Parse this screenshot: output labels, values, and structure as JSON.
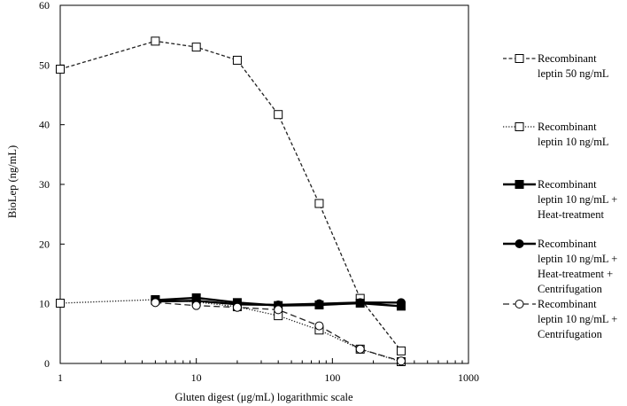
{
  "chart_data": {
    "type": "line",
    "title": "",
    "xlabel": "Gluten digest (μg/mL) logarithmic scale",
    "ylabel": "BioLep (ng/mL)",
    "xscale": "log",
    "xlim": [
      1,
      1000
    ],
    "ylim": [
      0,
      60
    ],
    "x_ticks": [
      "1",
      "10",
      "100",
      "1000"
    ],
    "y_ticks": [
      "0",
      "10",
      "20",
      "30",
      "40",
      "50",
      "60"
    ],
    "grid": false,
    "legend_position": "right",
    "series": [
      {
        "name_lines": [
          "Recombinant",
          "leptin 50 ng/mL"
        ],
        "line_style": "dashed",
        "line_width": 1.3,
        "marker": "square-open",
        "color": "#222222",
        "x": [
          1,
          5,
          10,
          20,
          40,
          80,
          160,
          320
        ],
        "y": [
          49.3,
          54.0,
          53.0,
          50.8,
          41.7,
          26.8,
          10.9,
          2.1
        ]
      },
      {
        "name_lines": [
          "Recombinant",
          "leptin 10 ng/mL"
        ],
        "line_style": "dotted",
        "line_width": 1.3,
        "marker": "square-open",
        "color": "#222222",
        "x": [
          1,
          5,
          10,
          20,
          40,
          80,
          160,
          320
        ],
        "y": [
          10.1,
          10.7,
          10.3,
          9.5,
          8.0,
          5.6,
          2.4,
          0.3
        ]
      },
      {
        "name_lines": [
          "Recombinant",
          "leptin 10 ng/mL +",
          "Heat-treatment"
        ],
        "line_style": "solid",
        "line_width": 2.4,
        "marker": "square-filled",
        "color": "#000000",
        "x": [
          5,
          10,
          20,
          40,
          80,
          160,
          320
        ],
        "y": [
          10.6,
          11.0,
          10.2,
          9.7,
          9.8,
          10.1,
          9.6
        ]
      },
      {
        "name_lines": [
          "Recombinant",
          "leptin 10 ng/mL +",
          "Heat-treatment +",
          "Centrifugation"
        ],
        "line_style": "solid",
        "line_width": 2.4,
        "marker": "circle-filled",
        "color": "#000000",
        "x": [
          5,
          10,
          20,
          40,
          80,
          160,
          320
        ],
        "y": [
          10.4,
          10.5,
          9.9,
          9.8,
          10.0,
          10.2,
          10.2
        ]
      },
      {
        "name_lines": [
          "Recombinant",
          "leptin 10 ng/mL +",
          "Centrifugation"
        ],
        "line_style": "longdash",
        "line_width": 1.3,
        "marker": "circle-open",
        "color": "#222222",
        "x": [
          5,
          10,
          20,
          40,
          80,
          160,
          320
        ],
        "y": [
          10.2,
          9.7,
          9.4,
          9.0,
          6.3,
          2.4,
          0.4
        ]
      }
    ]
  }
}
